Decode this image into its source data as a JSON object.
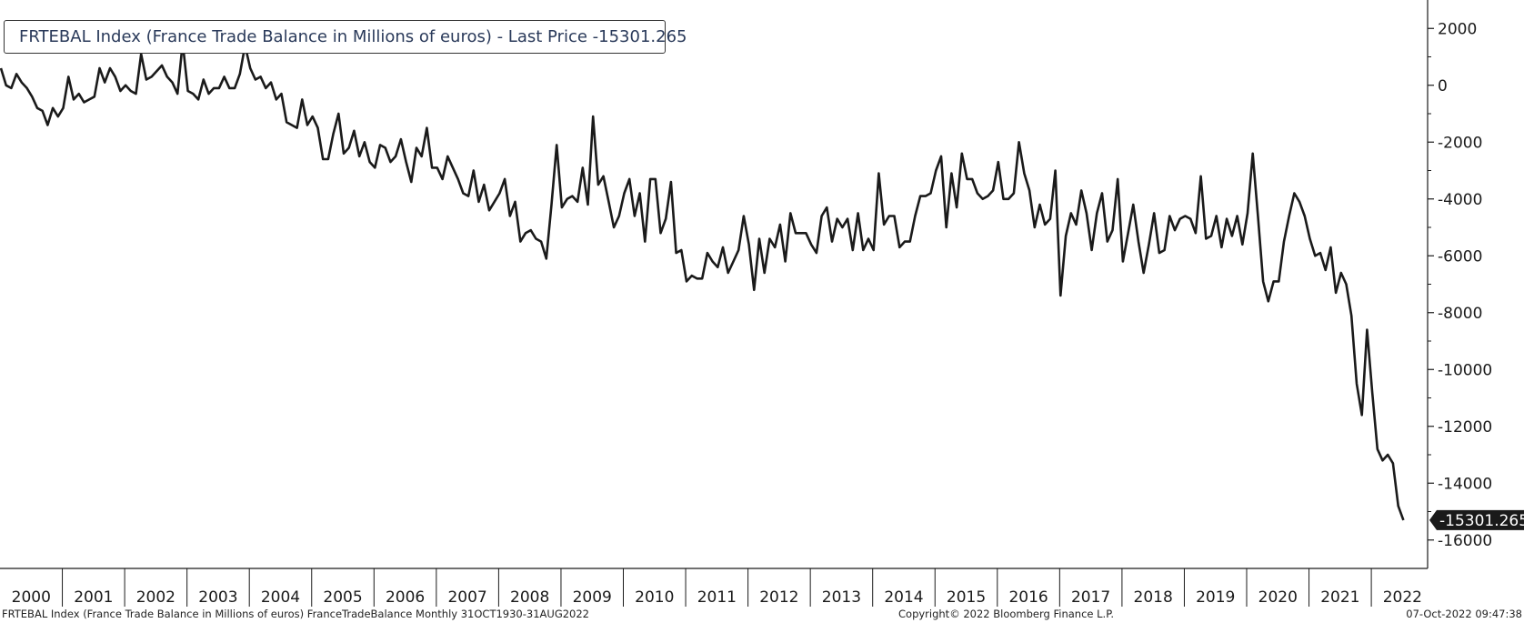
{
  "legend": {
    "text": "FRTEBAL Index (France Trade Balance in Millions of euros) - Last Price -15301.265"
  },
  "footer": {
    "left": "FRTEBAL Index (France Trade Balance in Millions of euros) FranceTradeBalance  Monthly 31OCT1930-31AUG2022",
    "center": "Copyright© 2022 Bloomberg Finance L.P.",
    "right": "07-Oct-2022 09:47:38"
  },
  "colors": {
    "line": "#1a1a1a",
    "axis": "#1a1a1a",
    "badge_bg": "#1a1a1a",
    "badge_text": "#ffffff"
  },
  "chart_data": {
    "type": "line",
    "title": "",
    "xlabel": "",
    "ylabel": "",
    "ylim": [
      -17000,
      3000
    ],
    "y_ticks": [
      2000,
      0,
      -2000,
      -4000,
      -6000,
      -8000,
      -10000,
      -12000,
      -14000,
      -16000
    ],
    "x_categories": [
      "2000",
      "2001",
      "2002",
      "2003",
      "2004",
      "2005",
      "2006",
      "2007",
      "2008",
      "2009",
      "2010",
      "2011",
      "2012",
      "2013",
      "2014",
      "2015",
      "2016",
      "2017",
      "2018",
      "2019",
      "2020",
      "2021",
      "2022"
    ],
    "last_value_label": "-15301.265",
    "grid": false,
    "legend_position": "top-left",
    "series": [
      {
        "name": "FRTEBAL Index (France Trade Balance in Millions of euros) - Last Price",
        "start": "2000-01",
        "frequency": "monthly",
        "values": [
          600,
          0,
          -100,
          400,
          100,
          -100,
          -400,
          -800,
          -900,
          -1400,
          -800,
          -1100,
          -800,
          300,
          -500,
          -300,
          -600,
          -500,
          -400,
          600,
          100,
          600,
          300,
          -200,
          0,
          -200,
          -300,
          1100,
          200,
          300,
          500,
          700,
          300,
          100,
          -300,
          1500,
          -200,
          -300,
          -500,
          200,
          -300,
          -100,
          -100,
          300,
          -100,
          -100,
          400,
          1400,
          600,
          200,
          300,
          -100,
          100,
          -500,
          -300,
          -1300,
          -1400,
          -1500,
          -500,
          -1400,
          -1100,
          -1500,
          -2600,
          -2600,
          -1700,
          -1000,
          -2400,
          -2200,
          -1600,
          -2500,
          -2000,
          -2700,
          -2900,
          -2100,
          -2200,
          -2700,
          -2500,
          -1900,
          -2700,
          -3400,
          -2200,
          -2500,
          -1500,
          -2900,
          -2900,
          -3300,
          -2500,
          -2900,
          -3300,
          -3800,
          -3900,
          -3000,
          -4100,
          -3500,
          -4400,
          -4100,
          -3800,
          -3300,
          -4600,
          -4100,
          -5500,
          -5200,
          -5100,
          -5400,
          -5500,
          -6100,
          -4200,
          -2100,
          -4300,
          -4000,
          -3900,
          -4100,
          -2900,
          -4200,
          -1100,
          -3500,
          -3200,
          -4100,
          -5000,
          -4600,
          -3800,
          -3300,
          -4600,
          -3800,
          -5500,
          -3300,
          -3300,
          -5200,
          -4700,
          -3400,
          -5900,
          -5800,
          -6900,
          -6700,
          -6800,
          -6800,
          -5900,
          -6200,
          -6400,
          -5700,
          -6600,
          -6200,
          -5800,
          -4600,
          -5600,
          -7200,
          -5400,
          -6600,
          -5400,
          -5700,
          -4900,
          -6200,
          -4500,
          -5200,
          -5200,
          -5200,
          -5600,
          -5900,
          -4600,
          -4300,
          -5500,
          -4700,
          -5000,
          -4700,
          -5800,
          -4500,
          -5800,
          -5400,
          -5800,
          -3100,
          -4900,
          -4600,
          -4600,
          -5700,
          -5500,
          -5500,
          -4600,
          -3900,
          -3900,
          -3800,
          -3000,
          -2500,
          -5000,
          -3100,
          -4300,
          -2400,
          -3300,
          -3300,
          -3800,
          -4000,
          -3900,
          -3700,
          -2700,
          -4000,
          -4000,
          -3800,
          -2000,
          -3100,
          -3700,
          -5000,
          -4200,
          -4900,
          -4700,
          -3000,
          -7400,
          -5300,
          -4500,
          -4900,
          -3700,
          -4500,
          -5800,
          -4500,
          -3800,
          -5500,
          -5100,
          -3300,
          -6200,
          -5200,
          -4200,
          -5500,
          -6600,
          -5600,
          -4500,
          -5900,
          -5800,
          -4600,
          -5100,
          -4700,
          -4600,
          -4700,
          -5200,
          -3200,
          -5400,
          -5300,
          -4600,
          -5700,
          -4700,
          -5300,
          -4600,
          -5600,
          -4500,
          -2400,
          -4600,
          -6900,
          -7600,
          -6900,
          -6900,
          -5500,
          -4600,
          -3800,
          -4100,
          -4600,
          -5400,
          -6000,
          -5900,
          -6500,
          -5700,
          -7300,
          -6600,
          -7000,
          -8100,
          -10500,
          -11600,
          -8600,
          -10800,
          -12800,
          -13200,
          -13000,
          -13300,
          -14800,
          -15301.265
        ]
      }
    ]
  }
}
